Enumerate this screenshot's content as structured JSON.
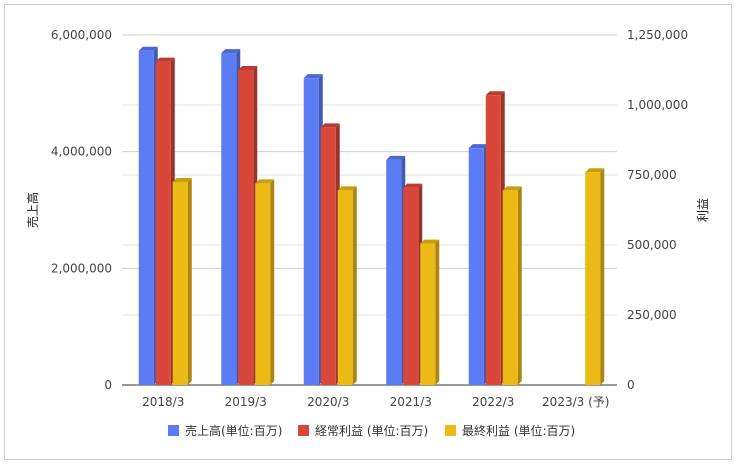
{
  "chart_data": {
    "type": "bar",
    "categories": [
      "2018/3",
      "2019/3",
      "2020/3",
      "2021/3",
      "2022/3",
      "2023/3 (予)"
    ],
    "series": [
      {
        "name": "売上高(単位:百万)",
        "axis": "left",
        "color": "#5b7cf5",
        "values": [
          5730000,
          5690000,
          5260000,
          3860000,
          4060000,
          null
        ]
      },
      {
        "name": "経常利益 (単位:百万)",
        "axis": "right",
        "color": "#d9473a",
        "values": [
          1155000,
          1125000,
          920000,
          705000,
          1035000,
          null
        ]
      },
      {
        "name": "最終利益 (単位:百万)",
        "axis": "right",
        "color": "#ecb915",
        "values": [
          725000,
          720000,
          695000,
          505000,
          695000,
          760000
        ]
      }
    ],
    "ylabel_left": "売上高",
    "ylabel_right": "利益",
    "ylim_left": [
      0,
      6000000
    ],
    "ylim_right": [
      0,
      1250000
    ],
    "yticks_left": [
      "0",
      "2,000,000",
      "4,000,000",
      "6,000,000"
    ],
    "yticks_right": [
      "0",
      "250,000",
      "500,000",
      "750,000",
      "1,000,000",
      "1,250,000"
    ],
    "grid": true,
    "legend_position": "bottom"
  }
}
